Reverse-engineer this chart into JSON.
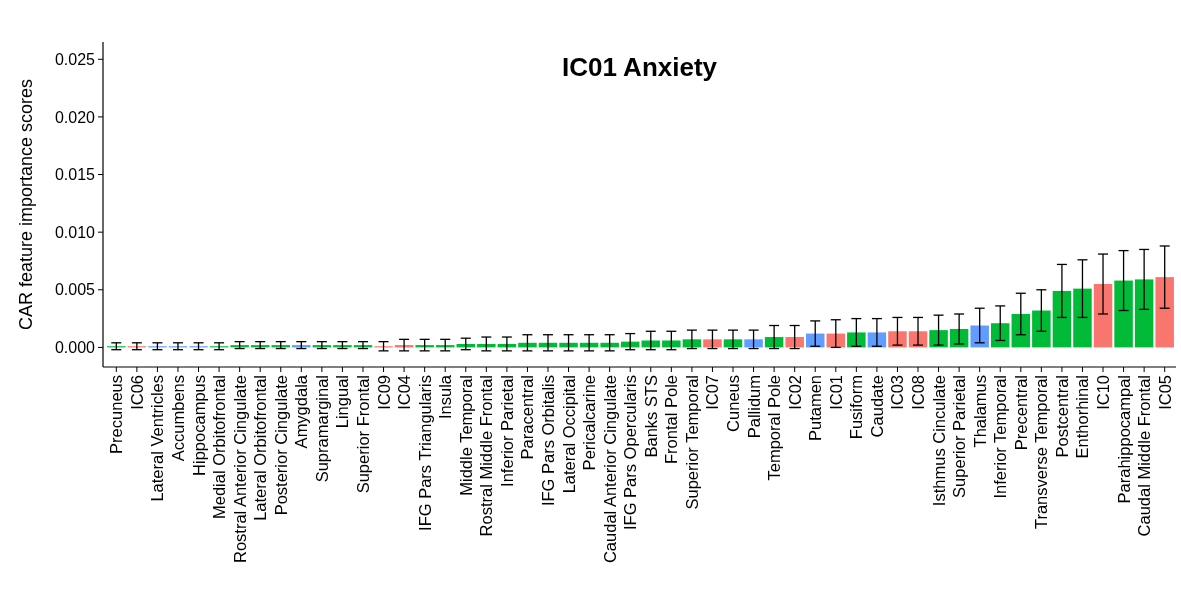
{
  "chart_data": {
    "type": "bar",
    "title": "IC01 Anxiety",
    "ylabel": "CAR feature importance scores",
    "categories": [
      "Precuneus",
      "IC06",
      "Lateral Ventricles",
      "Accumbens",
      "Hippocampus",
      "Medial Orbitofrontal",
      "Rostral Anterior Cingulate",
      "Lateral Orbitofrontal",
      "Posterior Cingulate",
      "Amygdala",
      "Supramarginal",
      "Lingual",
      "Superior Frontal",
      "IC09",
      "IC04",
      "IFG Pars Triangularis",
      "Insula",
      "Middle Temporal",
      "Rostral Middle Frontal",
      "Inferior Parietal",
      "Paracentral",
      "IFG Pars Orbitalis",
      "Lateral Occipital",
      "Pericalcarine",
      "Caudal Anterior Cingulate",
      "IFG Pars Opercularis",
      "Banks STS",
      "Frontal Pole",
      "Superior Temporal",
      "IC07",
      "Cuneus",
      "Pallidum",
      "Temporal Pole",
      "IC02",
      "Putamen",
      "IC01",
      "Fusiform",
      "Caudate",
      "IC03",
      "IC08",
      "Isthmus Cinculate",
      "Superior Parietal",
      "Thalamus",
      "Inferior Temporal",
      "Precentral",
      "Transverse Temporal",
      "Postcentral",
      "Enthorhinal",
      "IC10",
      "Parahippocampal",
      "Caudal Middle Frontal",
      "IC05"
    ],
    "values": [
      0.0001,
      0.0001,
      0.0001,
      0.0001,
      0.0001,
      0.0001,
      0.0002,
      0.0002,
      0.0002,
      0.0002,
      0.0002,
      0.0002,
      0.0002,
      0.0001,
      0.0002,
      0.0002,
      0.0002,
      0.0003,
      0.0003,
      0.0003,
      0.0004,
      0.0004,
      0.0004,
      0.0004,
      0.0004,
      0.0005,
      0.0006,
      0.0006,
      0.0007,
      0.0007,
      0.0007,
      0.0007,
      0.0009,
      0.0009,
      0.0012,
      0.0012,
      0.0013,
      0.0013,
      0.0014,
      0.0014,
      0.0015,
      0.0016,
      0.0019,
      0.0021,
      0.0029,
      0.0032,
      0.0049,
      0.0051,
      0.0055,
      0.0058,
      0.0059,
      0.0061
    ],
    "errors": [
      0.0003,
      0.0003,
      0.0003,
      0.0003,
      0.0003,
      0.0003,
      0.0003,
      0.0003,
      0.0003,
      0.0003,
      0.0003,
      0.0003,
      0.0003,
      0.0004,
      0.0005,
      0.0005,
      0.0005,
      0.0005,
      0.0006,
      0.0006,
      0.0007,
      0.0007,
      0.0007,
      0.0007,
      0.0007,
      0.0007,
      0.0008,
      0.0008,
      0.0008,
      0.0008,
      0.0008,
      0.0008,
      0.001,
      0.001,
      0.0011,
      0.0012,
      0.0012,
      0.0012,
      0.0012,
      0.0012,
      0.0013,
      0.0013,
      0.0015,
      0.0015,
      0.0018,
      0.0018,
      0.0023,
      0.0025,
      0.0026,
      0.0026,
      0.0026,
      0.0027
    ],
    "colors": [
      "#00ba38",
      "#f8766d",
      "#619cff",
      "#619cff",
      "#619cff",
      "#00ba38",
      "#00ba38",
      "#00ba38",
      "#00ba38",
      "#619cff",
      "#00ba38",
      "#00ba38",
      "#00ba38",
      "#f8766d",
      "#f8766d",
      "#00ba38",
      "#00ba38",
      "#00ba38",
      "#00ba38",
      "#00ba38",
      "#00ba38",
      "#00ba38",
      "#00ba38",
      "#00ba38",
      "#00ba38",
      "#00ba38",
      "#00ba38",
      "#00ba38",
      "#00ba38",
      "#f8766d",
      "#00ba38",
      "#619cff",
      "#00ba38",
      "#f8766d",
      "#619cff",
      "#f8766d",
      "#00ba38",
      "#619cff",
      "#f8766d",
      "#f8766d",
      "#00ba38",
      "#00ba38",
      "#619cff",
      "#00ba38",
      "#00ba38",
      "#00ba38",
      "#00ba38",
      "#00ba38",
      "#f8766d",
      "#00ba38",
      "#00ba38",
      "#f8766d"
    ],
    "ylim": [
      -0.0017,
      0.0265
    ],
    "yticks": [
      {
        "value": 0,
        "label": "0.000"
      },
      {
        "value": 0.005,
        "label": "0.005"
      },
      {
        "value": 0.01,
        "label": "0.010"
      },
      {
        "value": 0.015,
        "label": "0.015"
      },
      {
        "value": 0.02,
        "label": "0.020"
      },
      {
        "value": 0.025,
        "label": "0.025"
      }
    ],
    "grid": false
  }
}
